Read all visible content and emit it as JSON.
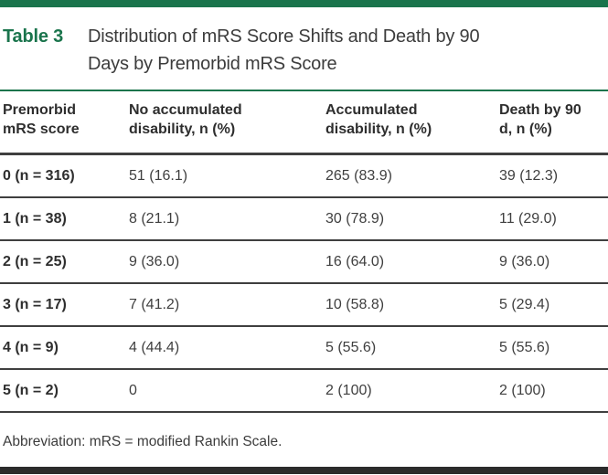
{
  "title": {
    "label": "Table 3",
    "lines": [
      "Distribution of mRS Score Shifts and Death by 90",
      "Days by Premorbid mRS Score"
    ]
  },
  "table": {
    "columns": [
      "Premorbid mRS score",
      "No accumulated disability, n (%)",
      "Accumulated disability, n (%)",
      "Death by 90 d, n (%)"
    ],
    "rows": [
      {
        "label": "0 (n = 316)",
        "values": [
          "51 (16.1)",
          "265 (83.9)",
          "39 (12.3)"
        ]
      },
      {
        "label": "1 (n = 38)",
        "values": [
          "8 (21.1)",
          "30 (78.9)",
          "11 (29.0)"
        ]
      },
      {
        "label": "2 (n = 25)",
        "values": [
          "9 (36.0)",
          "16 (64.0)",
          "9 (36.0)"
        ]
      },
      {
        "label": "3 (n = 17)",
        "values": [
          "7 (41.2)",
          "10 (58.8)",
          "5 (29.4)"
        ]
      },
      {
        "label": "4 (n = 9)",
        "values": [
          "4 (44.4)",
          "5 (55.6)",
          "5 (55.6)"
        ]
      },
      {
        "label": "5 (n = 2)",
        "values": [
          "0",
          "2 (100)",
          "2 (100)"
        ]
      }
    ]
  },
  "footnote": "Abbreviation: mRS = modified Rankin Scale.",
  "colors": {
    "accent_green": "#1A744C",
    "rule_dark": "#3F3F3F",
    "rule_light": "#8A8A8A",
    "bottom_bar": "#2B2B2B",
    "text_dark": "#2E2E2E",
    "text_body": "#3F3F3F"
  }
}
